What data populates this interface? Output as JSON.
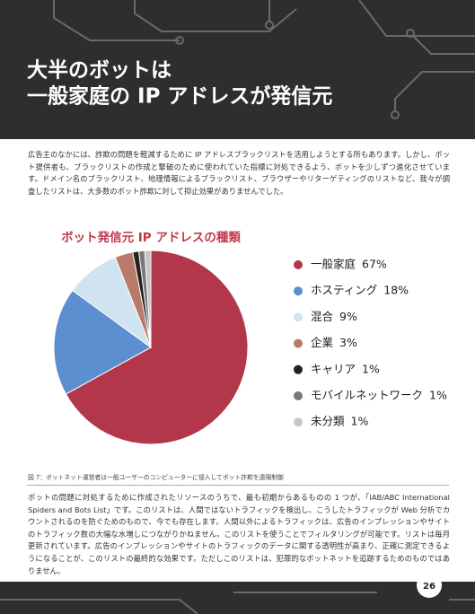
{
  "header": {
    "title_lines": [
      "大半のボットは",
      "一般家庭の IP アドレスが発信元"
    ]
  },
  "intro": "広告主のなかには、詐欺の問題を軽減するために IP アドレスブラックリストを活用しようとする所もあります。しかし、ボット提供者も、ブラックリストの作成と撃破のために使われていた指標に対処できるよう、ボットを少しずつ進化させています。ドメイン名のブラックリスト、地理情報によるブラックリスト、ブラウザーやリターゲティングのリストなど、我々が調査したリストは、大多数のボット詐欺に対して抑止効果がありませんでした。",
  "chart_data": {
    "type": "pie",
    "title": "ボット発信元 IP アドレスの種類",
    "categories": [
      "一般家庭",
      "ホスティング",
      "混合",
      "企業",
      "キャリア",
      "モバイルネットワーク",
      "未分類"
    ],
    "values": [
      67,
      18,
      9,
      3,
      1,
      1,
      1
    ],
    "value_labels": [
      "67%",
      "18%",
      "9%",
      "3%",
      "1%",
      "1%",
      "1%"
    ],
    "colors": [
      "#b3374b",
      "#5b8fcf",
      "#cfe4f0",
      "#b97a6a",
      "#222222",
      "#7a7a7a",
      "#c6c6c6"
    ]
  },
  "caption": "図 7：ボットネット運営者は一般ユーザーのコンピューターに侵入してボット詐欺を遠隔制御",
  "body": "ボットの問題に対処するために作成されたリソースのうちで、最も初期からあるものの 1 つが、「IAB/ABC International Spiders and Bots List」です。このリストは、人間ではないトラフィックを検出し、こうしたトラフィックが Web 分析でカウントされるのを防ぐためのもので、今でも存在します。人間以外によるトラフィックは、広告のインプレッションやサイトのトラフィック数の大幅な水増しにつながりかねません。このリストを使うことでフィルタリングが可能です。リストは毎月更新されています。広告のインプレッションやサイトのトラフィックのデータに関する透明性が高まり、正確に測定できるようになることが、このリストの最終的な効果です。ただしこのリストは、犯罪的なボットネットを追跡するためのものではありません。",
  "page_number": "26"
}
